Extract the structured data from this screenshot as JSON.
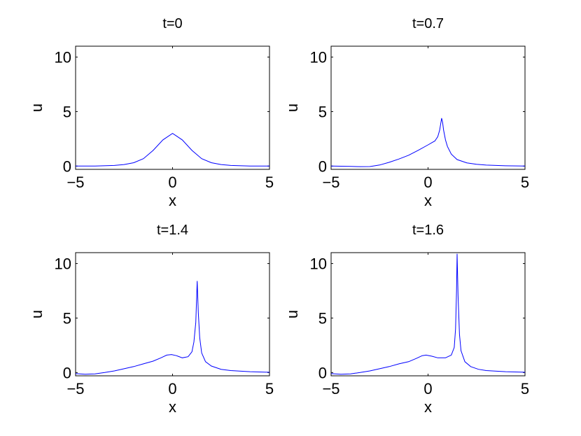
{
  "chart_data": [
    {
      "type": "line",
      "title": "t=0",
      "xlabel": "x",
      "ylabel": "u",
      "xlim": [
        -5,
        5
      ],
      "ylim": [
        -0.3,
        11
      ],
      "xticks": [
        -5,
        0,
        5
      ],
      "yticks": [
        0,
        5,
        10
      ],
      "xtick_labels": [
        "−5",
        "0",
        "5"
      ],
      "ytick_labels": [
        "0",
        "5",
        "10"
      ],
      "grid": false,
      "color": "#0000ff",
      "series": [
        {
          "x": [
            -5,
            -4,
            -3,
            -2.5,
            -2,
            -1.5,
            -1,
            -0.5,
            0,
            0.5,
            1,
            1.5,
            2,
            2.5,
            3,
            4,
            5
          ],
          "y": [
            0.0,
            0.01,
            0.06,
            0.14,
            0.31,
            0.68,
            1.44,
            2.4,
            3.0,
            2.4,
            1.44,
            0.68,
            0.31,
            0.14,
            0.06,
            0.01,
            0.0
          ]
        }
      ]
    },
    {
      "type": "line",
      "title": "t=0.7",
      "xlabel": "x",
      "ylabel": "u",
      "xlim": [
        -5,
        5
      ],
      "ylim": [
        -0.3,
        11
      ],
      "xticks": [
        -5,
        0,
        5
      ],
      "yticks": [
        0,
        5,
        10
      ],
      "xtick_labels": [
        "−5",
        "0",
        "5"
      ],
      "ytick_labels": [
        "0",
        "5",
        "10"
      ],
      "grid": false,
      "color": "#0000ff",
      "series": [
        {
          "x": [
            -5,
            -4,
            -3.5,
            -3,
            -2.5,
            -2,
            -1.5,
            -1,
            -0.5,
            0,
            0.2,
            0.35,
            0.5,
            0.6,
            0.7,
            0.75,
            0.8,
            0.9,
            1.0,
            1.2,
            1.5,
            2,
            2.5,
            3,
            4,
            5
          ],
          "y": [
            0.0,
            -0.03,
            -0.05,
            -0.04,
            0.1,
            0.35,
            0.65,
            1.0,
            1.45,
            1.95,
            2.15,
            2.3,
            2.7,
            3.3,
            4.4,
            4.0,
            3.3,
            2.4,
            1.8,
            1.1,
            0.6,
            0.3,
            0.16,
            0.09,
            0.03,
            0.0
          ]
        }
      ]
    },
    {
      "type": "line",
      "title": "t=1.4",
      "xlabel": "x",
      "ylabel": "u",
      "xlim": [
        -5,
        5
      ],
      "ylim": [
        -0.3,
        11
      ],
      "xticks": [
        -5,
        0,
        5
      ],
      "yticks": [
        0,
        5,
        10
      ],
      "xtick_labels": [
        "−5",
        "0",
        "5"
      ],
      "ytick_labels": [
        "0",
        "5",
        "10"
      ],
      "grid": false,
      "color": "#0000ff",
      "series": [
        {
          "x": [
            -5,
            -4.5,
            -4,
            -3.5,
            -3,
            -2.5,
            -2,
            -1.5,
            -1,
            -0.6,
            -0.3,
            -0.05,
            0.2,
            0.5,
            0.8,
            1.0,
            1.1,
            1.2,
            1.27,
            1.33,
            1.4,
            1.5,
            1.7,
            2,
            2.5,
            3,
            4,
            5
          ],
          "y": [
            -0.1,
            -0.15,
            -0.12,
            0.0,
            0.15,
            0.35,
            0.55,
            0.8,
            1.05,
            1.35,
            1.6,
            1.65,
            1.55,
            1.35,
            1.45,
            1.9,
            2.8,
            4.6,
            8.4,
            5.5,
            3.2,
            1.8,
            1.0,
            0.6,
            0.3,
            0.18,
            0.08,
            0.03
          ]
        }
      ]
    },
    {
      "type": "line",
      "title": "t=1.6",
      "xlabel": "x",
      "ylabel": "u",
      "xlim": [
        -5,
        5
      ],
      "ylim": [
        -0.3,
        11
      ],
      "xticks": [
        -5,
        0,
        5
      ],
      "yticks": [
        0,
        5,
        10
      ],
      "xtick_labels": [
        "−5",
        "0",
        "5"
      ],
      "ytick_labels": [
        "0",
        "5",
        "10"
      ],
      "grid": false,
      "color": "#0000ff",
      "series": [
        {
          "x": [
            -5,
            -4.5,
            -4,
            -3.5,
            -3,
            -2.5,
            -2,
            -1.5,
            -1,
            -0.6,
            -0.3,
            -0.1,
            0.2,
            0.5,
            0.9,
            1.2,
            1.35,
            1.42,
            1.47,
            1.5,
            1.55,
            1.62,
            1.7,
            1.9,
            2.2,
            2.6,
            3,
            4,
            5
          ],
          "y": [
            -0.1,
            -0.15,
            -0.12,
            0.0,
            0.15,
            0.35,
            0.55,
            0.8,
            1.0,
            1.3,
            1.55,
            1.6,
            1.5,
            1.35,
            1.35,
            1.6,
            2.3,
            4.0,
            7.5,
            10.9,
            7.0,
            3.5,
            2.0,
            1.0,
            0.55,
            0.3,
            0.18,
            0.08,
            0.03
          ]
        }
      ]
    }
  ]
}
